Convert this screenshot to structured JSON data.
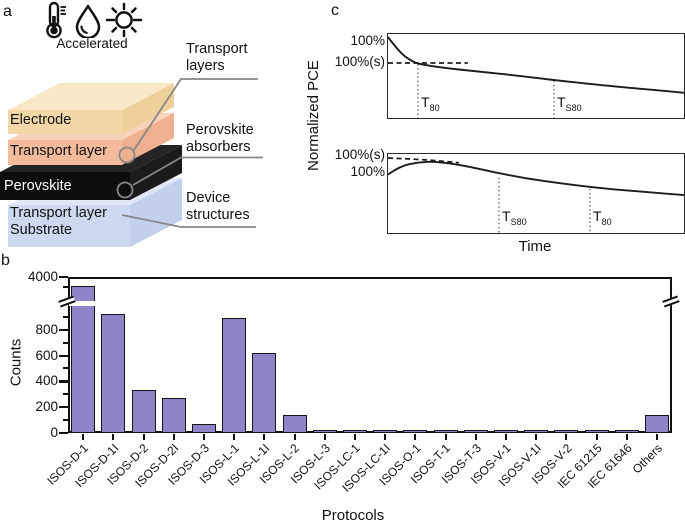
{
  "figure": {
    "panel_a": {
      "label": "a",
      "accelerated": "Accelerated",
      "icons": [
        "thermometer-icon",
        "droplet-icon",
        "sun-icon"
      ],
      "layers": [
        {
          "name": "Electrode"
        },
        {
          "name": "Transport layer"
        },
        {
          "name": "Perovskite"
        },
        {
          "name": "Transport layer"
        },
        {
          "name": "Substrate"
        }
      ],
      "callouts": [
        {
          "line1": "Transport",
          "line2": "layers"
        },
        {
          "line1": "Perovskite",
          "line2": "absorbers"
        },
        {
          "line1": "Device",
          "line2": "structures"
        }
      ],
      "colors": {
        "electrode_top": "#f8e8c8",
        "electrode_front": "#f3d7a6",
        "electrode_side": "#efd09b",
        "tl_top": "#f9d3b9",
        "tl_front": "#f3bb9c",
        "tl_side": "#efb08f",
        "pvk_top": "#242424",
        "pvk_front": "#0d0d0d",
        "pvk_side": "#1b1b1b",
        "blue_top": "#dfe7f6",
        "blue_front": "#cdd9f0",
        "blue_side": "#c2d0ec"
      }
    },
    "panel_c": {
      "label": "c",
      "ylabel": "Normalized PCE",
      "xlabel": "Time",
      "top_plot": {
        "label_initial": "100%",
        "label_stabilized": "100%(s)",
        "markers": [
          {
            "main": "T",
            "sub": "80"
          },
          {
            "main": "T",
            "sub": "S80"
          }
        ]
      },
      "bottom_plot": {
        "label_stabilized": "100%(s)",
        "label_initial": "100%",
        "markers": [
          {
            "main": "T",
            "sub": "S80"
          },
          {
            "main": "T",
            "sub": "80"
          }
        ]
      }
    },
    "panel_b": {
      "label": "b",
      "ylabel": "Counts",
      "xlabel": "Protocols"
    }
  },
  "chart_data": [
    {
      "type": "bar",
      "title": "",
      "xlabel": "Protocols",
      "ylabel": "Counts",
      "categories": [
        "ISOS-D-1",
        "ISOS-D-1I",
        "ISOS-D-2",
        "ISOS-D-2I",
        "ISOS-D-3",
        "ISOS-L-1",
        "ISOS-L-1I",
        "ISOS-L-2",
        "ISOS-L-3",
        "ISOS-LC-1",
        "ISOS-LC-1I",
        "ISOS-O-1",
        "ISOS-T-1",
        "ISOS-T-3",
        "ISOS-V-1",
        "ISOS-V-1I",
        "ISOS-V-2",
        "IEC 61215",
        "IEC 61646",
        "Others"
      ],
      "values": [
        3800,
        920,
        330,
        270,
        70,
        890,
        620,
        140,
        22,
        12,
        8,
        18,
        15,
        10,
        8,
        6,
        10,
        20,
        6,
        140
      ],
      "bar_color": "#8e85c8",
      "bar_edge_color": "#151515",
      "yticks": [
        {
          "label": "0",
          "value": 0
        },
        {
          "label": "200",
          "value": 200
        },
        {
          "label": "400",
          "value": 400
        },
        {
          "label": "600",
          "value": 600
        },
        {
          "label": "800",
          "value": 800
        },
        {
          "label": "4000",
          "value": 4000,
          "above_break": true
        }
      ],
      "minor_ticks": [
        100,
        300,
        500,
        700,
        900
      ],
      "axis_break": {
        "lower": 950,
        "upper": 3600
      },
      "grid": false,
      "legend": "none"
    },
    {
      "type": "line",
      "id": "pce-decay-top",
      "ylabel": "Normalized PCE",
      "description": "Monotonic decay: PCE falls from 100% to stabilized 100%(s), then slow degradation; T80 occurs before TS80",
      "labels": [
        "100%",
        "100%(s)"
      ],
      "markers": [
        "T80",
        "TS80"
      ],
      "curve": [
        [
          0,
          0.036
        ],
        [
          0.02,
          0.13
        ],
        [
          0.05,
          0.25
        ],
        [
          0.08,
          0.32
        ],
        [
          0.101,
          0.355
        ],
        [
          0.18,
          0.4
        ],
        [
          0.3,
          0.445
        ],
        [
          0.45,
          0.5
        ],
        [
          0.561,
          0.55
        ],
        [
          0.75,
          0.62
        ],
        [
          0.88,
          0.66
        ],
        [
          1,
          0.7
        ]
      ],
      "dashed_guide": [
        [
          0,
          0.345
        ],
        [
          0.27,
          0.345
        ]
      ],
      "droplines": [
        {
          "x": 0.101,
          "y": 0.36
        },
        {
          "x": 0.561,
          "y": 0.555
        }
      ]
    },
    {
      "type": "line",
      "id": "pce-rise-then-decay-bottom",
      "xlabel": "Time",
      "description": "Burn-in rise: PCE rises from 100% to stabilized 100%(s), then degrades; TS80 occurs before T80",
      "labels": [
        "100%(s)",
        "100%"
      ],
      "markers": [
        "TS80",
        "T80"
      ],
      "curve": [
        [
          0,
          0.26
        ],
        [
          0.04,
          0.155
        ],
        [
          0.1,
          0.105
        ],
        [
          0.16,
          0.095
        ],
        [
          0.25,
          0.14
        ],
        [
          0.375,
          0.245
        ],
        [
          0.5,
          0.33
        ],
        [
          0.682,
          0.42
        ],
        [
          0.85,
          0.475
        ],
        [
          1,
          0.52
        ]
      ],
      "dashed_guide": [
        [
          0,
          0.05
        ],
        [
          0.12,
          0.07
        ],
        [
          0.24,
          0.11
        ]
      ],
      "droplines": [
        {
          "x": 0.375,
          "y": 0.3
        },
        {
          "x": 0.682,
          "y": 0.44
        }
      ]
    }
  ]
}
